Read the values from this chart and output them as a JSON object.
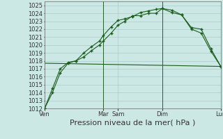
{
  "bg_color": "#cce8e5",
  "grid_color": "#aacccc",
  "line_color": "#1a5c1a",
  "marker_color": "#1a5c1a",
  "xlabel": "Pression niveau de la mer( hPa )",
  "ylim": [
    1012,
    1025.5
  ],
  "yticks": [
    1012,
    1013,
    1014,
    1015,
    1016,
    1017,
    1018,
    1019,
    1020,
    1021,
    1022,
    1023,
    1024,
    1025
  ],
  "xtick_labels": [
    "Ven",
    "Mar",
    "Sam",
    "Dim",
    "Lun"
  ],
  "xtick_positions": [
    0,
    3.0,
    3.75,
    6.0,
    9.0
  ],
  "series1_x": [
    0,
    0.4,
    0.8,
    1.2,
    1.6,
    2.0,
    2.4,
    2.8,
    3.0,
    3.4,
    3.75,
    4.1,
    4.5,
    4.9,
    5.3,
    5.7,
    6.0,
    6.5,
    7.0,
    7.5,
    8.0,
    8.5,
    9.0
  ],
  "series1_y": [
    1012,
    1014,
    1016.5,
    1017.7,
    1018.0,
    1018.5,
    1019.3,
    1020.0,
    1020.5,
    1021.5,
    1022.5,
    1023.0,
    1023.7,
    1023.7,
    1024.0,
    1024.0,
    1024.6,
    1024.1,
    1023.8,
    1022.0,
    1021.5,
    1019.2,
    1017.3
  ],
  "series2_x": [
    0,
    0.4,
    0.8,
    1.2,
    1.6,
    2.0,
    2.4,
    2.8,
    3.0,
    3.4,
    3.75,
    4.1,
    4.5,
    4.9,
    5.3,
    5.7,
    6.0,
    6.5,
    7.0,
    7.5,
    8.0,
    8.5,
    9.0
  ],
  "series2_y": [
    1012,
    1014.5,
    1017.0,
    1017.8,
    1018.0,
    1019.0,
    1019.8,
    1020.5,
    1021.2,
    1022.3,
    1023.1,
    1023.3,
    1023.6,
    1024.1,
    1024.3,
    1024.5,
    1024.6,
    1024.4,
    1023.8,
    1022.2,
    1022.0,
    1019.5,
    1017.3
  ],
  "series3_x": [
    0,
    9.0
  ],
  "series3_y": [
    1017.7,
    1017.3
  ],
  "vlines_x": [
    3.0,
    6.0
  ],
  "xlabel_fontsize": 8,
  "tick_fontsize": 6
}
